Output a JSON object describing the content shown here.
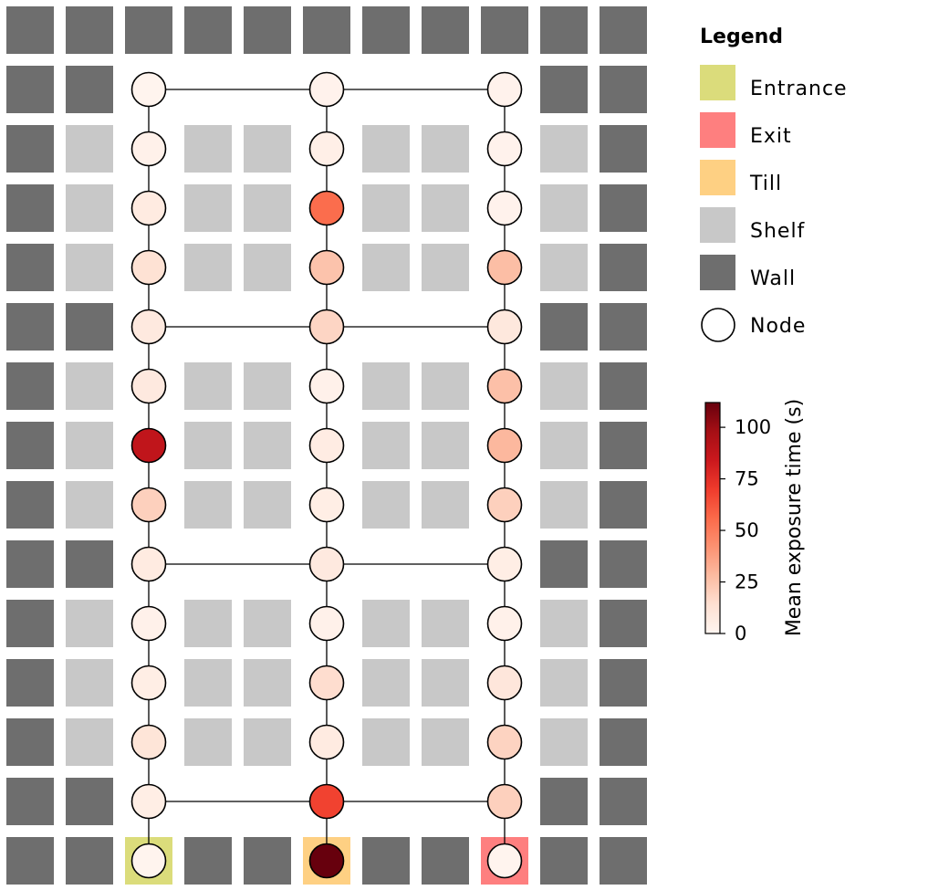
{
  "legend": {
    "title": "Legend",
    "items": [
      {
        "key": "entrance",
        "label": "Entrance",
        "color": "#dbdc7b"
      },
      {
        "key": "exit",
        "label": "Exit",
        "color": "#fe7f7f"
      },
      {
        "key": "till",
        "label": "Till",
        "color": "#fed083"
      },
      {
        "key": "shelf",
        "label": "Shelf",
        "color": "#c8c8c8"
      },
      {
        "key": "wall",
        "label": "Wall",
        "color": "#6e6e6e"
      },
      {
        "key": "node",
        "label": "Node",
        "color": "#ffffff"
      }
    ]
  },
  "colorbar": {
    "label": "Mean exposure time (s)",
    "min": 0,
    "max": 112,
    "ticks": [
      0,
      25,
      50,
      75,
      100
    ],
    "colormap": "Reds"
  },
  "grid": {
    "cols": 11,
    "rows": 15,
    "tile_types": [
      "WWWWWWWWWWW",
      "WWNNNNNNNWW",
      "WSNSSNSSNSW",
      "WSNSSNSSNSW",
      "WSNSSNSSNSW",
      "WWNNNNNNNWW",
      "WSNSSNSSNSW",
      "WSNSSNSSNSW",
      "WSNSSNSSNSW",
      "WWNNNNNNNWW",
      "WSNSSNSSNSW",
      "WSNSSNSSNSW",
      "WSNSSNSSNSW",
      "WWNNNNNNNWW",
      "WWEWWTWWXWW"
    ]
  },
  "nodes": [
    {
      "col": 2,
      "row": 1,
      "value": 1
    },
    {
      "col": 5,
      "row": 1,
      "value": 2
    },
    {
      "col": 8,
      "row": 1,
      "value": 2
    },
    {
      "col": 2,
      "row": 2,
      "value": 3
    },
    {
      "col": 5,
      "row": 2,
      "value": 4
    },
    {
      "col": 8,
      "row": 2,
      "value": 2
    },
    {
      "col": 2,
      "row": 3,
      "value": 7
    },
    {
      "col": 5,
      "row": 3,
      "value": 55
    },
    {
      "col": 8,
      "row": 3,
      "value": 2
    },
    {
      "col": 2,
      "row": 4,
      "value": 13
    },
    {
      "col": 5,
      "row": 4,
      "value": 25
    },
    {
      "col": 8,
      "row": 4,
      "value": 27
    },
    {
      "col": 2,
      "row": 5,
      "value": 8
    },
    {
      "col": 5,
      "row": 5,
      "value": 18
    },
    {
      "col": 8,
      "row": 5,
      "value": 9
    },
    {
      "col": 2,
      "row": 6,
      "value": 8
    },
    {
      "col": 5,
      "row": 6,
      "value": 3
    },
    {
      "col": 8,
      "row": 6,
      "value": 26
    },
    {
      "col": 2,
      "row": 7,
      "value": 88
    },
    {
      "col": 5,
      "row": 7,
      "value": 6
    },
    {
      "col": 8,
      "row": 7,
      "value": 29
    },
    {
      "col": 2,
      "row": 8,
      "value": 20
    },
    {
      "col": 5,
      "row": 8,
      "value": 5
    },
    {
      "col": 8,
      "row": 8,
      "value": 20
    },
    {
      "col": 2,
      "row": 9,
      "value": 7
    },
    {
      "col": 5,
      "row": 9,
      "value": 8
    },
    {
      "col": 8,
      "row": 9,
      "value": 5
    },
    {
      "col": 2,
      "row": 10,
      "value": 3
    },
    {
      "col": 5,
      "row": 10,
      "value": 3
    },
    {
      "col": 8,
      "row": 10,
      "value": 3
    },
    {
      "col": 2,
      "row": 11,
      "value": 5
    },
    {
      "col": 5,
      "row": 11,
      "value": 15
    },
    {
      "col": 8,
      "row": 11,
      "value": 10
    },
    {
      "col": 2,
      "row": 12,
      "value": 11
    },
    {
      "col": 5,
      "row": 12,
      "value": 7
    },
    {
      "col": 8,
      "row": 12,
      "value": 19
    },
    {
      "col": 2,
      "row": 13,
      "value": 5
    },
    {
      "col": 5,
      "row": 13,
      "value": 68
    },
    {
      "col": 8,
      "row": 13,
      "value": 20
    },
    {
      "col": 2,
      "row": 14,
      "value": 1
    },
    {
      "col": 5,
      "row": 14,
      "value": 112
    },
    {
      "col": 8,
      "row": 14,
      "value": 1
    }
  ],
  "edges": [
    [
      [
        2,
        1
      ],
      [
        5,
        1
      ]
    ],
    [
      [
        5,
        1
      ],
      [
        8,
        1
      ]
    ],
    [
      [
        2,
        5
      ],
      [
        5,
        5
      ]
    ],
    [
      [
        5,
        5
      ],
      [
        8,
        5
      ]
    ],
    [
      [
        2,
        9
      ],
      [
        5,
        9
      ]
    ],
    [
      [
        5,
        9
      ],
      [
        8,
        9
      ]
    ],
    [
      [
        2,
        13
      ],
      [
        5,
        13
      ]
    ],
    [
      [
        5,
        13
      ],
      [
        8,
        13
      ]
    ],
    [
      [
        2,
        1
      ],
      [
        2,
        14
      ]
    ],
    [
      [
        5,
        1
      ],
      [
        5,
        14
      ]
    ],
    [
      [
        8,
        1
      ],
      [
        8,
        14
      ]
    ]
  ]
}
